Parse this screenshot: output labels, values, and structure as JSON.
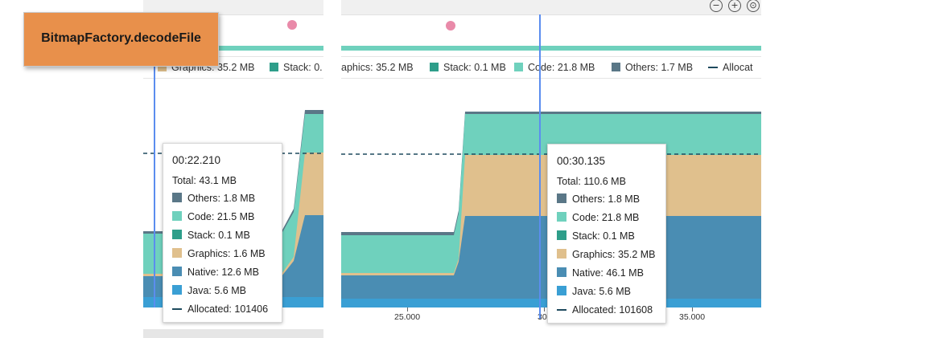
{
  "callout": {
    "text": "BitmapFactory.decodeFile"
  },
  "colors": {
    "others": "#5a7787",
    "code": "#6fd1bd",
    "stack": "#2e9e8a",
    "graphics": "#e0c08d",
    "native": "#4a8db3",
    "java": "#3a9fd4",
    "allocated": "#1e4a5e",
    "event_band": "#6fd1bd",
    "event_dot": "#e98aa9",
    "cursor": "#5b8def",
    "callout_bg": "#e8904b"
  },
  "left_panel": {
    "legend": [
      {
        "key": "graphics",
        "label": "Graphics: 35.2 MB"
      },
      {
        "key": "stack",
        "label": "Stack: 0."
      }
    ],
    "tooltip": {
      "time": "00:22.210",
      "total": "Total: 43.1 MB",
      "rows": [
        {
          "key": "others",
          "label": "Others: 1.8 MB"
        },
        {
          "key": "code",
          "label": "Code: 21.5 MB"
        },
        {
          "key": "stack",
          "label": "Stack: 0.1 MB"
        },
        {
          "key": "graphics",
          "label": "Graphics: 1.6 MB"
        },
        {
          "key": "native",
          "label": "Native: 12.6 MB"
        },
        {
          "key": "java",
          "label": "Java: 5.6 MB"
        },
        {
          "key": "allocated",
          "label": "Allocated: 101406"
        }
      ]
    }
  },
  "right_panel": {
    "zoom_buttons": [
      {
        "name": "zoom-out",
        "glyph": "−"
      },
      {
        "name": "zoom-in",
        "glyph": "+"
      },
      {
        "name": "zoom-reset",
        "glyph": "⊙"
      }
    ],
    "legend": [
      {
        "key": "graphics",
        "label": "aphics: 35.2 MB"
      },
      {
        "key": "stack",
        "label": "Stack: 0.1 MB"
      },
      {
        "key": "code",
        "label": "Code: 21.8 MB"
      },
      {
        "key": "others",
        "label": "Others: 1.7 MB"
      },
      {
        "key": "allocated",
        "label": "Allocat"
      }
    ],
    "tooltip": {
      "time": "00:30.135",
      "total": "Total: 110.6 MB",
      "rows": [
        {
          "key": "others",
          "label": "Others: 1.8 MB"
        },
        {
          "key": "code",
          "label": "Code: 21.8 MB"
        },
        {
          "key": "stack",
          "label": "Stack: 0.1 MB"
        },
        {
          "key": "graphics",
          "label": "Graphics: 35.2 MB"
        },
        {
          "key": "native",
          "label": "Native: 46.1 MB"
        },
        {
          "key": "java",
          "label": "Java: 5.6 MB"
        },
        {
          "key": "allocated",
          "label": "Allocated: 101608"
        }
      ]
    },
    "x_ticks": [
      "25.000",
      "30",
      "35.000"
    ]
  }
}
